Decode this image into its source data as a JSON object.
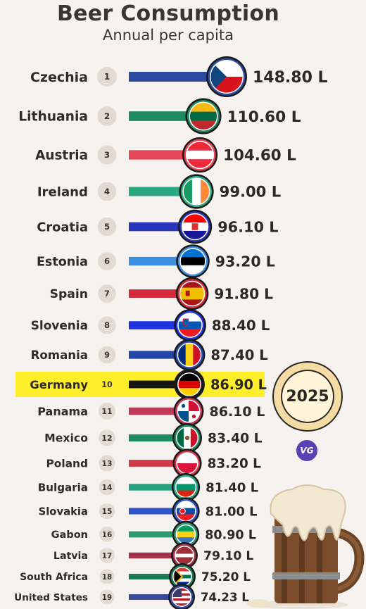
{
  "header": {
    "title": "Beer Consumption",
    "subtitle": "Annual per capita"
  },
  "badge": {
    "year": "2025"
  },
  "logo": {
    "text": "VG"
  },
  "chart_data": {
    "type": "bar",
    "title": "Beer Consumption",
    "subtitle": "Annual per capita",
    "unit": "L",
    "categories": [
      "Czechia",
      "Lithuania",
      "Austria",
      "Ireland",
      "Croatia",
      "Estonia",
      "Spain",
      "Slovenia",
      "Romania",
      "Germany",
      "Panama",
      "Mexico",
      "Poland",
      "Bulgaria",
      "Slovakia",
      "Gabon",
      "Latvia",
      "South Africa",
      "United States"
    ],
    "ranks": [
      1,
      2,
      3,
      4,
      5,
      6,
      7,
      8,
      9,
      10,
      11,
      12,
      13,
      14,
      15,
      16,
      17,
      18,
      19
    ],
    "values": [
      148.8,
      110.6,
      104.6,
      99.0,
      96.1,
      93.2,
      91.8,
      88.4,
      87.4,
      86.9,
      86.1,
      83.4,
      83.2,
      81.4,
      81.0,
      80.9,
      79.1,
      75.2,
      74.23
    ],
    "labels": [
      "148.80 L",
      "110.60 L",
      "104.60 L",
      "99.00 L",
      "96.10 L",
      "93.20 L",
      "91.80 L",
      "88.40 L",
      "87.40 L",
      "86.90 L",
      "86.10 L",
      "83.40 L",
      "83.20 L",
      "81.40 L",
      "81.00 L",
      "80.90 L",
      "79.10 L",
      "75.20 L",
      "74.23 L"
    ],
    "highlight": "Germany",
    "highlight_color": "#ffef2a",
    "bar_colors": [
      "#2b4aa0",
      "#1f8a62",
      "#e24858",
      "#2aa882",
      "#2734b8",
      "#3c8ee0",
      "#d42a3c",
      "#1d34e0",
      "#2346a8",
      "#151515",
      "#c23a5a",
      "#1f8a62",
      "#d23a4a",
      "#26a07e",
      "#2f55c8",
      "#2f9a70",
      "#a3324a",
      "#1a7a56",
      "#3a4a9c"
    ]
  }
}
